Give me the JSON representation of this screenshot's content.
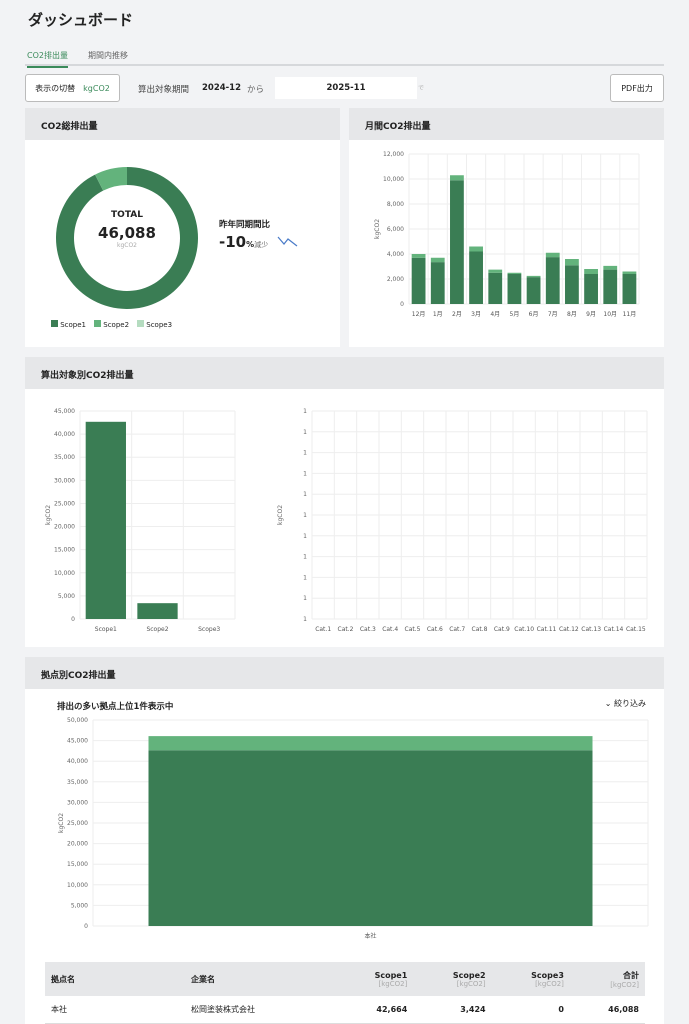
{
  "title": "ダッシュボード",
  "tabs": [
    "CO2排出量",
    "期間内推移"
  ],
  "controls": {
    "toggle_label": "表示の切替",
    "unit": "kgCO2",
    "period_label": "算出対象期間",
    "from": "2024-12",
    "from_suffix": "から",
    "to": "2025-11",
    "to_suffix": "で",
    "pdf": "PDF出力"
  },
  "colors": {
    "scope1": "#3a7d54",
    "scope2": "#63b37c",
    "scope3": "#b5dcc0"
  },
  "total_card": {
    "title": "CO2総排出量",
    "total_label": "TOTAL",
    "total": "46,088",
    "unit": "kgCO2",
    "yoy_label": "昨年同期間比",
    "yoy_value": "-10",
    "yoy_pct": "%",
    "yoy_text": "減少",
    "legend": [
      "Scope1",
      "Scope2",
      "Scope3"
    ]
  },
  "monthly_card": {
    "title": "月間CO2排出量"
  },
  "target_card": {
    "title": "算出対象別CO2排出量"
  },
  "site_card": {
    "title": "拠点別CO2排出量",
    "subtitle": "排出の多い拠点上位1件表示中",
    "filter": "絞り込み"
  },
  "table": {
    "headers": [
      "拠点名",
      "企業名",
      "Scope1",
      "Scope2",
      "Scope3",
      "合計"
    ],
    "unit": "[kgCO2]",
    "rows": [
      [
        "本社",
        "松岡塗装株式会社",
        "42,664",
        "3,424",
        "0",
        "46,088"
      ]
    ]
  },
  "chart_data": [
    {
      "type": "pie",
      "name": "donut",
      "labels": [
        "Scope1",
        "Scope2",
        "Scope3"
      ],
      "values": [
        42664,
        3424,
        0
      ]
    },
    {
      "type": "bar",
      "name": "monthly",
      "ylabel": "kgCO2",
      "ylim": [
        0,
        12000
      ],
      "yticks": [
        "0",
        "2,000",
        "4,000",
        "6,000",
        "8,000",
        "10,000",
        "12,000"
      ],
      "categories": [
        "12月",
        "1月",
        "2月",
        "3月",
        "4月",
        "5月",
        "6月",
        "7月",
        "8月",
        "9月",
        "10月",
        "11月"
      ],
      "series": [
        {
          "name": "Scope1",
          "values": [
            3700,
            3350,
            9900,
            4200,
            2500,
            2400,
            2150,
            3750,
            3100,
            2400,
            2750,
            2400
          ]
        },
        {
          "name": "Scope2",
          "values": [
            300,
            350,
            400,
            400,
            250,
            100,
            100,
            350,
            500,
            400,
            300,
            200
          ]
        }
      ]
    },
    {
      "type": "bar",
      "name": "scope",
      "ylabel": "kgCO2",
      "ylim": [
        0,
        45000
      ],
      "yticks": [
        "0",
        "5,000",
        "10,000",
        "15,000",
        "20,000",
        "25,000",
        "30,000",
        "35,000",
        "40,000",
        "45,000"
      ],
      "categories": [
        "Scope1",
        "Scope2",
        "Scope3"
      ],
      "series": [
        {
          "name": "total",
          "values": [
            42664,
            3424,
            0
          ]
        }
      ]
    },
    {
      "type": "bar",
      "name": "category",
      "ylabel": "kgCO2",
      "ylim": [
        0,
        1
      ],
      "yticks": [
        "1",
        "1",
        "1",
        "1",
        "1",
        "1",
        "1",
        "1",
        "1",
        "1",
        "1"
      ],
      "categories": [
        "Cat.1",
        "Cat.2",
        "Cat.3",
        "Cat.4",
        "Cat.5",
        "Cat.6",
        "Cat.7",
        "Cat.8",
        "Cat.9",
        "Cat.10",
        "Cat.11",
        "Cat.12",
        "Cat.13",
        "Cat.14",
        "Cat.15"
      ],
      "series": []
    },
    {
      "type": "bar",
      "name": "site",
      "ylabel": "kgCO2",
      "ylim": [
        0,
        50000
      ],
      "yticks": [
        "0",
        "5,000",
        "10,000",
        "15,000",
        "20,000",
        "25,000",
        "30,000",
        "35,000",
        "40,000",
        "45,000",
        "50,000"
      ],
      "categories": [
        "本社"
      ],
      "series": [
        {
          "name": "Scope1",
          "values": [
            42664
          ]
        },
        {
          "name": "Scope2",
          "values": [
            3424
          ]
        }
      ]
    }
  ]
}
